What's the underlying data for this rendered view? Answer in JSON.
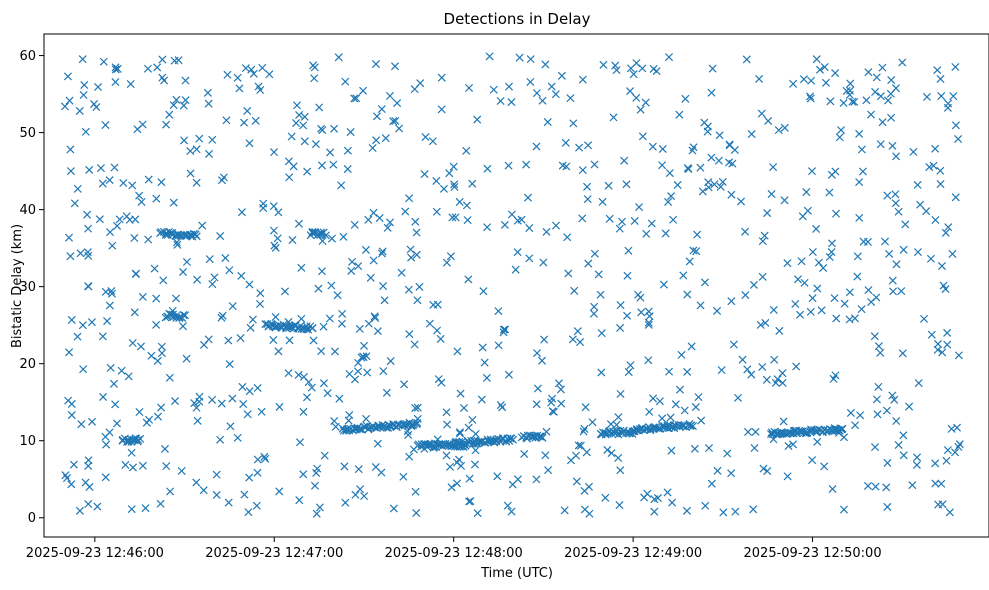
{
  "chart_data": {
    "type": "scatter",
    "title": "Detections in Delay",
    "xlabel": "Time (UTC)",
    "ylabel": "Bistatic Delay (km)",
    "marker": "x",
    "color": "#1f77b4",
    "xlim": [
      "2025-09-23 12:45:43",
      "2025-09-23 12:50:59"
    ],
    "ylim": [
      -2.5,
      62.8
    ],
    "x_ticks": [
      "2025-09-23 12:46:00",
      "2025-09-23 12:47:00",
      "2025-09-23 12:48:00",
      "2025-09-23 12:49:00",
      "2025-09-23 12:50:00"
    ],
    "y_ticks": [
      "0",
      "10",
      "20",
      "30",
      "40",
      "50",
      "60"
    ],
    "grid": false,
    "time_range": [
      "2025-09-23 12:45:50",
      "2025-09-23 12:50:50"
    ],
    "delay_range": [
      0.5,
      59.8
    ],
    "tracks": [
      {
        "from": "2025-09-23 12:46:22",
        "to": "2025-09-23 12:46:34",
        "start_km": 37.0,
        "end_km": 36.6
      },
      {
        "from": "2025-09-23 12:46:24",
        "to": "2025-09-23 12:46:30",
        "start_km": 26.3,
        "end_km": 26.1
      },
      {
        "from": "2025-09-23 12:46:09",
        "to": "2025-09-23 12:46:15",
        "start_km": 10.1,
        "end_km": 10.0
      },
      {
        "from": "2025-09-23 12:46:57",
        "to": "2025-09-23 12:47:13",
        "start_km": 25.0,
        "end_km": 24.6
      },
      {
        "from": "2025-09-23 12:47:12",
        "to": "2025-09-23 12:47:17",
        "start_km": 36.9,
        "end_km": 36.9
      },
      {
        "from": "2025-09-23 12:47:23",
        "to": "2025-09-23 12:47:48",
        "start_km": 11.4,
        "end_km": 12.2
      },
      {
        "from": "2025-09-23 12:47:48",
        "to": "2025-09-23 12:48:04",
        "start_km": 9.4,
        "end_km": 9.4
      },
      {
        "from": "2025-09-23 12:48:01",
        "to": "2025-09-23 12:48:20",
        "start_km": 9.7,
        "end_km": 10.2
      },
      {
        "from": "2025-09-23 12:48:23",
        "to": "2025-09-23 12:48:30",
        "start_km": 10.5,
        "end_km": 10.5
      },
      {
        "from": "2025-09-23 12:48:49",
        "to": "2025-09-23 12:49:00",
        "start_km": 11.0,
        "end_km": 11.1
      },
      {
        "from": "2025-09-23 12:49:00",
        "to": "2025-09-23 12:49:20",
        "start_km": 11.4,
        "end_km": 12.0
      },
      {
        "from": "2025-09-23 12:49:46",
        "to": "2025-09-23 12:50:10",
        "start_km": 11.0,
        "end_km": 11.4
      }
    ],
    "points": [
      {
        "x": "2025-09-23 12:46:03",
        "y": 59.2
      },
      {
        "x": "2025-09-23 12:46:07",
        "y": 58.2
      },
      {
        "x": "2025-09-23 12:45:51",
        "y": 57.3
      },
      {
        "x": "2025-09-23 12:45:50",
        "y": 53.4
      },
      {
        "x": "2025-09-23 12:46:12",
        "y": 56.3
      },
      {
        "x": "2025-09-23 12:46:28",
        "y": 59.4
      },
      {
        "x": "2025-09-23 12:46:56",
        "y": 58.4
      },
      {
        "x": "2025-09-23 12:47:34",
        "y": 58.9
      },
      {
        "x": "2025-09-23 12:48:12",
        "y": 59.9
      },
      {
        "x": "2025-09-23 12:48:54",
        "y": 58.7
      },
      {
        "x": "2025-09-23 12:49:12",
        "y": 59.8
      },
      {
        "x": "2025-09-23 12:49:38",
        "y": 59.5
      },
      {
        "x": "2025-09-23 12:50:30",
        "y": 59.1
      },
      {
        "x": "2025-09-23 12:46:44",
        "y": 51.6
      },
      {
        "x": "2025-09-23 12:47:20",
        "y": 50.5
      },
      {
        "x": "2025-09-23 12:48:40",
        "y": 51.2
      },
      {
        "x": "2025-09-23 12:49:25",
        "y": 50.8
      },
      {
        "x": "2025-09-23 12:50:18",
        "y": 54.2
      },
      {
        "x": "2025-09-23 12:45:52",
        "y": 45.0
      },
      {
        "x": "2025-09-23 12:46:18",
        "y": 43.9
      },
      {
        "x": "2025-09-23 12:47:05",
        "y": 44.2
      },
      {
        "x": "2025-09-23 12:48:02",
        "y": 41.0
      },
      {
        "x": "2025-09-23 12:49:30",
        "y": 43.6
      },
      {
        "x": "2025-09-23 12:50:38",
        "y": 39.8
      },
      {
        "x": "2025-09-23 12:45:55",
        "y": 0.9
      },
      {
        "x": "2025-09-23 12:46:50",
        "y": 3.0
      },
      {
        "x": "2025-09-23 12:47:40",
        "y": 1.2
      },
      {
        "x": "2025-09-23 12:48:08",
        "y": 0.6
      },
      {
        "x": "2025-09-23 12:49:18",
        "y": 0.9
      },
      {
        "x": "2025-09-23 12:50:25",
        "y": 1.4
      },
      {
        "x": "2025-09-23 12:46:35",
        "y": 15.7
      },
      {
        "x": "2025-09-23 12:47:55",
        "y": 18.0
      },
      {
        "x": "2025-09-23 12:49:50",
        "y": 17.5
      },
      {
        "x": "2025-09-23 12:46:40",
        "y": 31.2
      },
      {
        "x": "2025-09-23 12:47:45",
        "y": 29.6
      },
      {
        "x": "2025-09-23 12:48:45",
        "y": 33.0
      },
      {
        "x": "2025-09-23 12:50:00",
        "y": 28.5
      },
      {
        "x": "2025-09-23 12:50:45",
        "y": 24.0
      },
      {
        "x": "2025-09-23 12:45:53",
        "y": 6.9
      }
    ]
  }
}
